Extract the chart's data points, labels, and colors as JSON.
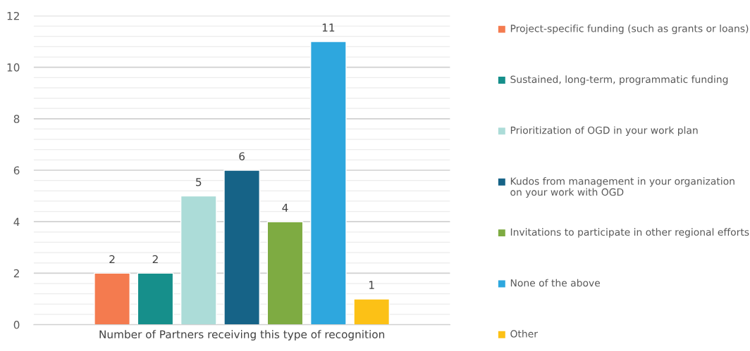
{
  "chart_data": {
    "type": "bar",
    "xlabel": "Number of Partners receiving this type of recognition",
    "categories": [
      null
    ],
    "series": [
      {
        "name": "Project-specific funding (such as grants or loans)",
        "color": "#f47b4f",
        "values": [
          2
        ]
      },
      {
        "name": "Sustained, long-term, programmatic funding",
        "color": "#168f8b",
        "values": [
          2
        ]
      },
      {
        "name": "Prioritization of OGD in your work plan",
        "color": "#acdcd8",
        "values": [
          5
        ]
      },
      {
        "name": "Kudos from management in your organization on your work with OGD",
        "color": "#166387",
        "values": [
          6
        ]
      },
      {
        "name": "Invitations to participate in other regional efforts",
        "color": "#7eab42",
        "values": [
          4
        ]
      },
      {
        "name": "None of the above",
        "color": "#2ea7de",
        "values": [
          11
        ]
      },
      {
        "name": "Other",
        "color": "#fcc116",
        "values": [
          1
        ]
      }
    ],
    "ylim": [
      0,
      12
    ],
    "yticks": [
      0,
      {
        "value": 0.4,
        "label": null
      },
      {
        "value": 0.8,
        "label": null
      },
      {
        "value": 1.2,
        "label": null
      },
      {
        "value": 1.6,
        "label": null
      },
      2,
      {
        "value": 2.4,
        "label": null
      },
      {
        "value": 2.8,
        "label": null
      },
      {
        "value": 3.2,
        "label": null
      },
      {
        "value": 3.6,
        "label": null
      },
      4,
      {
        "value": 4.4,
        "label": null
      },
      {
        "value": 4.8,
        "label": null
      },
      {
        "value": 5.2,
        "label": null
      },
      {
        "value": 5.6,
        "label": null
      },
      6,
      {
        "value": 6.4,
        "label": null
      },
      {
        "value": 6.8,
        "label": null
      },
      {
        "value": 7.2,
        "label": null
      },
      {
        "value": 7.6,
        "label": null
      },
      8,
      {
        "value": 8.4,
        "label": null
      },
      {
        "value": 8.8,
        "label": null
      },
      {
        "value": 9.2,
        "label": null
      },
      {
        "value": 9.6,
        "label": null
      },
      10,
      {
        "value": 10.4,
        "label": null
      },
      {
        "value": 10.8,
        "label": null
      },
      {
        "value": 11.2,
        "label": null
      },
      {
        "value": 11.6,
        "label": null
      },
      12
    ],
    "grid": "y",
    "legend": "right",
    "data_labels": true
  }
}
